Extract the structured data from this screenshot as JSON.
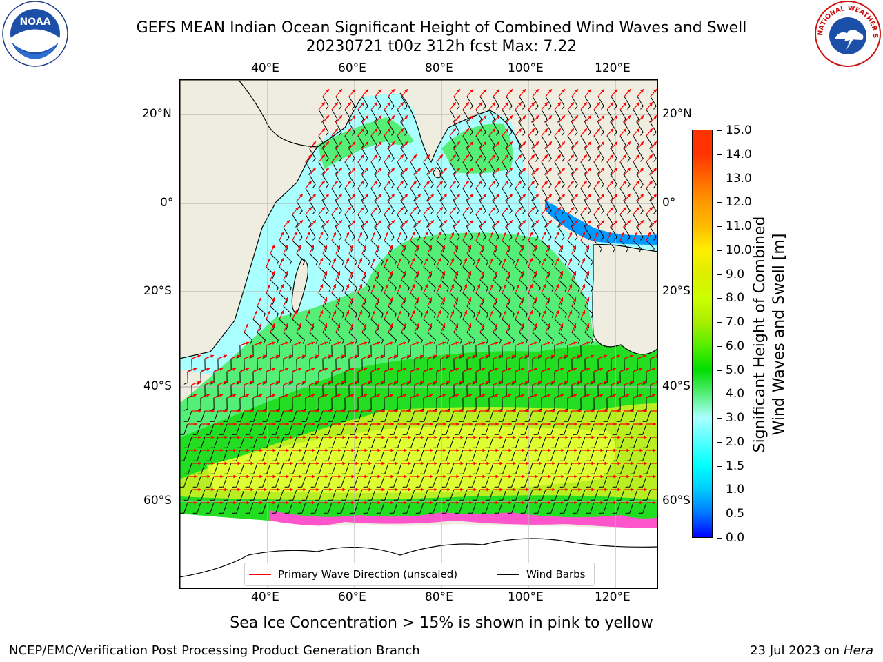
{
  "title": {
    "line1": "GEFS MEAN Indian Ocean Significant Height of Combined Wind Waves and Swell",
    "line2": "20230721 t00z 312h fcst   Max: 7.22"
  },
  "logos": {
    "left": {
      "name": "noaa-logo",
      "text": "NOAA"
    },
    "right": {
      "name": "nws-logo",
      "text": "NATIONAL WEATHER SERVICE"
    }
  },
  "map": {
    "lon_labels_top": [
      "40°E",
      "60°E",
      "80°E",
      "100°E",
      "120°E"
    ],
    "lon_labels_bottom": [
      "40°E",
      "60°E",
      "80°E",
      "100°E",
      "120°E"
    ],
    "lat_labels_left": [
      "20°N",
      "0°",
      "20°S",
      "40°S",
      "60°S"
    ],
    "lat_labels_right": [
      "20°N",
      "0°",
      "20°S",
      "40°S",
      "60°S"
    ],
    "colors": {
      "land": "#efede0",
      "ocean_calm": "#aaffff",
      "band_green": "#55ee77",
      "band_mid": "#22dd22",
      "band_yellow": "#ddff33",
      "ice_pink": "#ff55cc",
      "vector": "#ff0000",
      "barb": "#000000",
      "grid": "#b8b8b8"
    }
  },
  "legend": {
    "primary_wave": "Primary Wave Direction (unscaled)",
    "wind_barbs": "Wind Barbs",
    "primary_color": "#ff0000",
    "barb_color": "#000000"
  },
  "colorbar": {
    "label_line1": "Significant Height of Combined",
    "label_line2": "Wind Waves and Swell [m]",
    "ticks": [
      "0.0",
      "0.5",
      "1.0",
      "1.5",
      "2.0",
      "3.0",
      "4.0",
      "5.0",
      "6.0",
      "7.0",
      "8.0",
      "9.0",
      "10.0",
      "11.0",
      "12.0",
      "13.0",
      "14.0",
      "15.0"
    ],
    "colors": [
      "#0000ff",
      "#0077ff",
      "#00ccff",
      "#00ffff",
      "#55ffff",
      "#aaffff",
      "#55ee77",
      "#00dd00",
      "#55ee00",
      "#aaee00",
      "#ccff00",
      "#ddee00",
      "#ffee00",
      "#ffbb00",
      "#ff9900",
      "#ff6600",
      "#ff3300",
      "#ff0000"
    ]
  },
  "footer": {
    "sea_ice": "Sea Ice Concentration > 15% is shown in pink to yellow",
    "credit": "NCEP/EMC/Verification Post Processing Product Generation Branch",
    "date_prefix": "23 Jul 2023 on ",
    "machine": "Hera"
  }
}
